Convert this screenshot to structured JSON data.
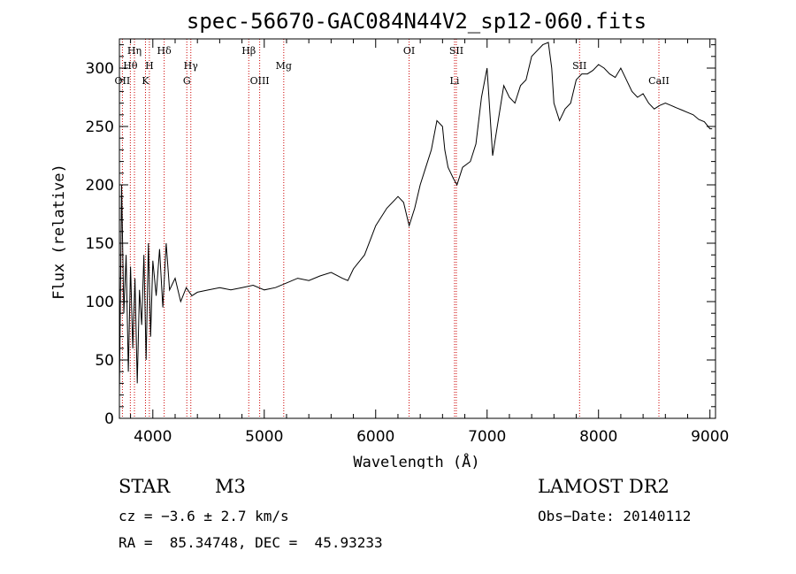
{
  "chart_data": {
    "type": "line",
    "title": "spec-56670-GAC084N44V2_sp12-060.fits",
    "xlabel": "Wavelength (Å)",
    "ylabel": "Flux (relative)",
    "xlim": [
      3700,
      9050
    ],
    "ylim": [
      0,
      325
    ],
    "xticks": [
      4000,
      5000,
      6000,
      7000,
      8000,
      9000
    ],
    "yticks": [
      0,
      50,
      100,
      150,
      200,
      250,
      300
    ],
    "grid": false,
    "line_color": "#000000",
    "marker_color": "#cc0000",
    "spectral_lines": [
      {
        "label": "OII",
        "wavelength": 3727,
        "row": 3
      },
      {
        "label": "Hθ",
        "wavelength": 3798,
        "row": 2
      },
      {
        "label": "Hη",
        "wavelength": 3835,
        "row": 1
      },
      {
        "label": "K",
        "wavelength": 3934,
        "row": 3
      },
      {
        "label": "H",
        "wavelength": 3969,
        "row": 2
      },
      {
        "label": "Hδ",
        "wavelength": 4102,
        "row": 1
      },
      {
        "label": "G",
        "wavelength": 4305,
        "row": 3
      },
      {
        "label": "Hγ",
        "wavelength": 4341,
        "row": 2
      },
      {
        "label": "Hβ",
        "wavelength": 4861,
        "row": 1
      },
      {
        "label": "OIII",
        "wavelength": 4959,
        "row": 3
      },
      {
        "label": "Mg",
        "wavelength": 5175,
        "row": 2
      },
      {
        "label": "OI",
        "wavelength": 6300,
        "row": 1
      },
      {
        "label": "Li",
        "wavelength": 6708,
        "row": 3
      },
      {
        "label": "SII",
        "wavelength": 6724,
        "row": 1
      },
      {
        "label": "SII",
        "wavelength": 7830,
        "row": 2
      },
      {
        "label": "CaII",
        "wavelength": 8542,
        "row": 3
      }
    ],
    "series": [
      {
        "x": [
          3700,
          3720,
          3740,
          3760,
          3780,
          3800,
          3820,
          3840,
          3860,
          3880,
          3900,
          3920,
          3940,
          3960,
          3980,
          4000,
          4030,
          4060,
          4090,
          4120,
          4150,
          4200,
          4250,
          4300,
          4350,
          4400,
          4500,
          4600,
          4700,
          4800,
          4900,
          5000,
          5100,
          5200,
          5300,
          5400,
          5500,
          5600,
          5700,
          5750,
          5800,
          5900,
          6000,
          6100,
          6200,
          6250,
          6300,
          6350,
          6400,
          6450,
          6500,
          6550,
          6600,
          6620,
          6650,
          6700,
          6730,
          6780,
          6850,
          6900,
          6950,
          7000,
          7050,
          7100,
          7150,
          7200,
          7250,
          7300,
          7350,
          7400,
          7450,
          7500,
          7550,
          7580,
          7600,
          7650,
          7700,
          7750,
          7800,
          7850,
          7900,
          7950,
          8000,
          8050,
          8100,
          8150,
          8200,
          8250,
          8300,
          8350,
          8400,
          8450,
          8500,
          8550,
          8600,
          8650,
          8700,
          8750,
          8800,
          8850,
          8900,
          8950,
          9000,
          9020
        ],
        "values": [
          20,
          200,
          90,
          140,
          40,
          130,
          60,
          120,
          30,
          110,
          80,
          140,
          50,
          150,
          70,
          135,
          105,
          145,
          95,
          150,
          110,
          120,
          100,
          112,
          105,
          108,
          110,
          112,
          110,
          112,
          114,
          110,
          112,
          116,
          120,
          118,
          122,
          125,
          120,
          118,
          128,
          140,
          165,
          180,
          190,
          185,
          165,
          180,
          200,
          215,
          230,
          255,
          250,
          230,
          215,
          205,
          200,
          215,
          220,
          235,
          275,
          300,
          225,
          255,
          285,
          275,
          270,
          285,
          290,
          310,
          315,
          320,
          322,
          300,
          270,
          255,
          265,
          270,
          290,
          295,
          295,
          298,
          303,
          300,
          295,
          292,
          300,
          290,
          280,
          275,
          278,
          270,
          265,
          268,
          270,
          268,
          266,
          264,
          262,
          260,
          256,
          254,
          248,
          248
        ]
      }
    ]
  },
  "info": {
    "object_class": "STAR",
    "subclass": "M3",
    "survey": "LAMOST DR2",
    "cz_line": "cz = −3.6 ± 2.7 km/s",
    "obs_date_line": "Obs−Date: 20140112",
    "radec_line": "RA =  85.34748, DEC =  45.93233"
  }
}
